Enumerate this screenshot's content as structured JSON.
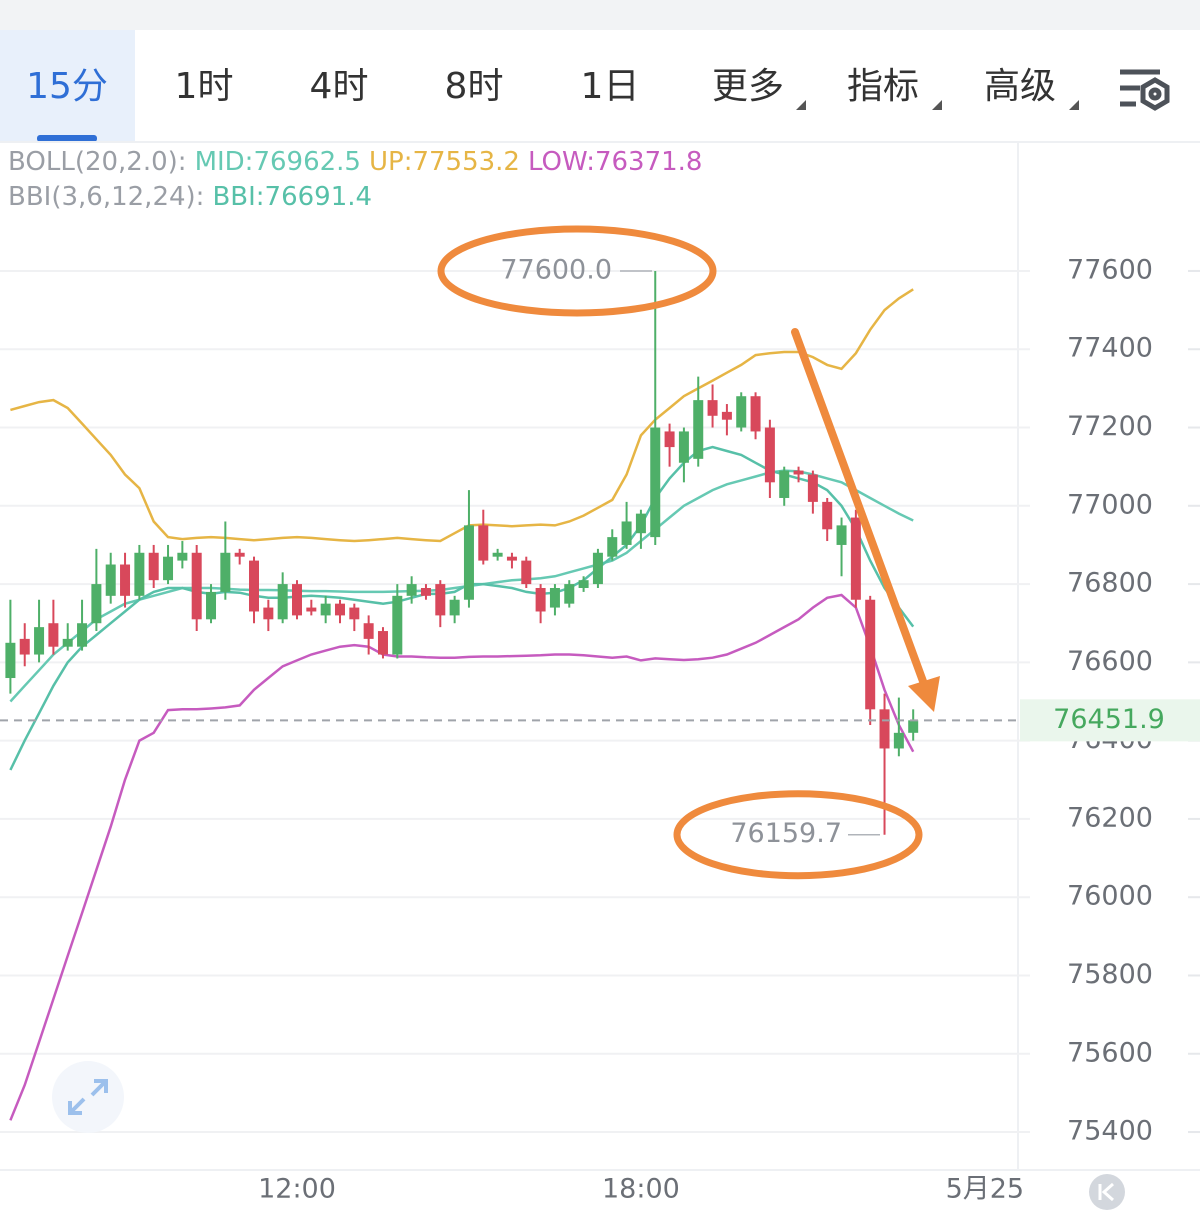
{
  "tabs": [
    "15分",
    "1时",
    "4时",
    "8时",
    "1日",
    "更多",
    "指标",
    "高级"
  ],
  "chart_data": {
    "type": "candlestick",
    "categories": [
      null,
      null,
      null,
      null,
      null,
      null,
      null,
      null,
      null,
      null,
      null,
      null,
      null,
      null,
      null,
      null,
      null,
      null,
      null,
      null,
      "12:00",
      null,
      null,
      null,
      null,
      null,
      null,
      null,
      null,
      null,
      null,
      null,
      null,
      null,
      null,
      null,
      null,
      null,
      null,
      null,
      null,
      null,
      null,
      null,
      "18:00",
      null,
      null,
      null,
      null,
      null,
      null,
      null,
      null,
      null,
      null,
      null,
      null,
      null,
      null,
      null,
      null,
      null,
      null,
      null,
      null,
      null,
      null,
      null,
      "5月25"
    ],
    "open": [
      76560,
      76660,
      76620,
      76700,
      76640,
      76640,
      76700,
      76770,
      76850,
      76770,
      76880,
      76810,
      76860,
      76880,
      76710,
      76780,
      76880,
      76860,
      76740,
      76710,
      76800,
      76740,
      76720,
      76750,
      76740,
      76700,
      76680,
      76620,
      76770,
      76790,
      76800,
      76720,
      76760,
      76950,
      76870,
      76870,
      76860,
      76790,
      76740,
      76750,
      76790,
      76800,
      76870,
      76900,
      76930,
      76920,
      77190,
      77110,
      77120,
      77270,
      77240,
      77200,
      77280,
      77200,
      77020,
      77090,
      77080,
      77010,
      76900,
      76970,
      76760,
      76480,
      76380,
      76420,
      null,
      null,
      null,
      null,
      null
    ],
    "high": [
      76760,
      76700,
      76760,
      76760,
      76700,
      76760,
      76890,
      76880,
      76880,
      76900,
      76900,
      76900,
      76910,
      76900,
      76800,
      76960,
      76890,
      76870,
      76760,
      76830,
      76810,
      76760,
      76770,
      76760,
      76750,
      76720,
      76690,
      76800,
      76820,
      76800,
      76810,
      76770,
      77040,
      76990,
      76890,
      76880,
      76870,
      76800,
      76800,
      76810,
      76820,
      76890,
      76940,
      77010,
      76990,
      77600,
      77210,
      77200,
      77330,
      77310,
      77260,
      77290,
      77290,
      77220,
      77100,
      77100,
      77090,
      77020,
      76970,
      76990,
      76770,
      76520,
      76510,
      76480,
      null,
      null,
      null,
      null,
      null
    ],
    "low": [
      76520,
      76590,
      76600,
      76620,
      76630,
      76630,
      76680,
      76750,
      76740,
      76760,
      76790,
      76800,
      76840,
      76680,
      76700,
      76760,
      76850,
      76700,
      76680,
      76700,
      76710,
      76720,
      76700,
      76700,
      76680,
      76620,
      76610,
      76610,
      76750,
      76760,
      76690,
      76700,
      76740,
      76850,
      76860,
      76840,
      76790,
      76700,
      76720,
      76740,
      76780,
      76790,
      76860,
      76890,
      76890,
      76900,
      77100,
      77060,
      77100,
      77200,
      77180,
      77190,
      77170,
      77020,
      77000,
      77060,
      76980,
      76910,
      76820,
      76740,
      76440,
      76159.7,
      76360,
      76400,
      null,
      null,
      null,
      null,
      null
    ],
    "close": [
      76650,
      76620,
      76690,
      76640,
      76660,
      76700,
      76800,
      76850,
      76770,
      76880,
      76810,
      76870,
      76880,
      76710,
      76780,
      76880,
      76870,
      76730,
      76710,
      76800,
      76720,
      76730,
      76750,
      76720,
      76710,
      76660,
      76620,
      76770,
      76800,
      76770,
      76720,
      76760,
      76950,
      76860,
      76880,
      76860,
      76800,
      76730,
      76790,
      76800,
      76810,
      76880,
      76920,
      76960,
      76980,
      77200,
      77150,
      77190,
      77270,
      77230,
      77220,
      77280,
      77190,
      77060,
      77090,
      77080,
      77010,
      76940,
      76950,
      76760,
      76480,
      76380,
      76420,
      76451.9,
      null,
      null,
      null,
      null,
      null
    ],
    "up_color": "#4eaf68",
    "down_color": "#d8485b",
    "indicators": [
      {
        "label": "BOLL(20,2.0):",
        "label_color": "#9a9ea5",
        "series": [
          {
            "name": "MID:",
            "color": "#66c9b3",
            "values": [
              76500,
              76540,
              76580,
              76620,
              76650,
              76680,
              76710,
              76730,
              76750,
              76760,
              76770,
              76780,
              76790,
              76790,
              76790,
              76788,
              76786,
              76785,
              76785,
              76784,
              76783,
              76782,
              76782,
              76781,
              76780,
              76780,
              76780,
              76781,
              76782,
              76783,
              76785,
              76790,
              76795,
              76800,
              76805,
              76810,
              76812,
              76815,
              76820,
              76830,
              76840,
              76850,
              76860,
              76880,
              76910,
              76940,
              76970,
              77000,
              77020,
              77040,
              77055,
              77065,
              77075,
              77085,
              77090,
              77088,
              77080,
              77070,
              77060,
              77040,
              77020,
              77000,
              76980,
              76962.5,
              null,
              null,
              null,
              null,
              null
            ]
          },
          {
            "name": "UP:",
            "color": "#e6b545",
            "values": [
              77245,
              77255,
              77265,
              77270,
              77250,
              77210,
              77170,
              77130,
              77080,
              77045,
              76960,
              76920,
              76915,
              76918,
              76920,
              76918,
              76915,
              76912,
              76915,
              76918,
              76920,
              76918,
              76915,
              76912,
              76910,
              76912,
              76915,
              76918,
              76915,
              76912,
              76910,
              76930,
              76950,
              76952,
              76950,
              76948,
              76950,
              76952,
              76950,
              76960,
              76975,
              76995,
              77015,
              77080,
              77180,
              77220,
              77250,
              77280,
              77300,
              77320,
              77340,
              77360,
              77385,
              77390,
              77393,
              77393,
              77380,
              77360,
              77350,
              77390,
              77450,
              77500,
              77530,
              77553.2,
              null,
              null,
              null,
              null,
              null
            ]
          },
          {
            "name": "LOW:",
            "color": "#c65bbf",
            "values": [
              75430,
              75520,
              75630,
              75740,
              75850,
              75960,
              76070,
              76180,
              76300,
              76400,
              76420,
              76478,
              76480,
              76480,
              76482,
              76485,
              76490,
              76530,
              76560,
              76590,
              76605,
              76620,
              76630,
              76640,
              76644,
              76640,
              76620,
              76615,
              76615,
              76613,
              76612,
              76612,
              76614,
              76615,
              76615,
              76616,
              76617,
              76618,
              76620,
              76620,
              76618,
              76615,
              76612,
              76615,
              76605,
              76610,
              76608,
              76606,
              76608,
              76612,
              76620,
              76635,
              76650,
              76670,
              76690,
              76710,
              76740,
              76765,
              76772,
              76740,
              76640,
              76530,
              76440,
              76371.8,
              null,
              null,
              null,
              null,
              null
            ]
          }
        ]
      },
      {
        "label": "BBI(3,6,12,24):",
        "label_color": "#9a9ea5",
        "series": [
          {
            "name": "BBI:",
            "color": "#57c0a8",
            "values": [
              76325,
              76400,
              76470,
              76540,
              76600,
              76640,
              76670,
              76700,
              76730,
              76760,
              76780,
              76790,
              76790,
              76780,
              76775,
              76780,
              76778,
              76770,
              76765,
              76765,
              76768,
              76770,
              76768,
              76765,
              76760,
              76755,
              76750,
              76755,
              76765,
              76775,
              76775,
              76780,
              76800,
              76800,
              76795,
              76790,
              76780,
              76775,
              76778,
              76790,
              76810,
              76840,
              76870,
              76900,
              76950,
              77020,
              77070,
              77110,
              77140,
              77150,
              77140,
              77130,
              77110,
              77090,
              77080,
              77070,
              77060,
              77040,
              77000,
              76940,
              76860,
              76790,
              76740,
              76691.4,
              null,
              null,
              null,
              null,
              null
            ]
          }
        ]
      }
    ],
    "ylim": [
      75303,
      77743
    ],
    "yticks": [
      77600,
      77400,
      77200,
      77000,
      76800,
      76600,
      76400,
      76200,
      76000,
      75800,
      75600,
      75400
    ],
    "grid": true,
    "last_price": 76451.9,
    "max_label": {
      "value": 77600,
      "label": "77600.0"
    },
    "min_label": {
      "value": 76159.7,
      "label": "76159.7"
    }
  }
}
